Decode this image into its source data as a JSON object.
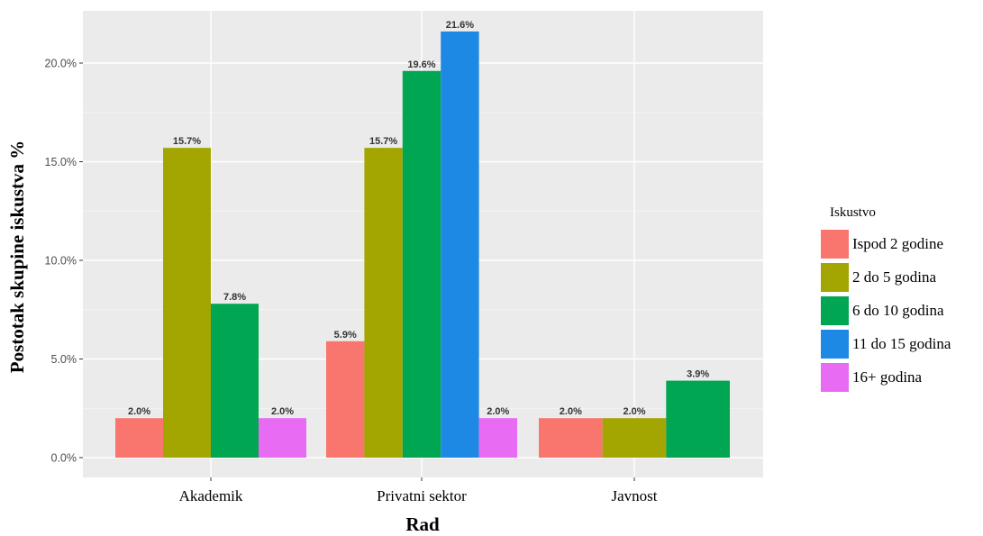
{
  "chart_data": {
    "type": "bar",
    "categories": [
      "Akademik",
      "Privatni sektor",
      "Javnost"
    ],
    "series": [
      {
        "name": "Ispod 2 godine",
        "color": "#F8766D",
        "values": [
          2.0,
          5.9,
          2.0
        ],
        "labels": [
          "2.0%",
          "5.9%",
          "2.0%"
        ]
      },
      {
        "name": "2 do 5 godina",
        "color": "#A3A500",
        "values": [
          15.7,
          15.7,
          2.0
        ],
        "labels": [
          "15.7%",
          "15.7%",
          "2.0%"
        ]
      },
      {
        "name": "6 do 10 godina",
        "color": "#00A651",
        "values": [
          7.8,
          19.6,
          3.9
        ],
        "labels": [
          "7.8%",
          "19.6%",
          "3.9%"
        ]
      },
      {
        "name": "11 do 15 godina",
        "color": "#1E88E5",
        "values": [
          null,
          21.6,
          null
        ],
        "labels": [
          "",
          "21.6%",
          ""
        ]
      },
      {
        "name": "16+ godina",
        "color": "#E76BF3",
        "values": [
          2.0,
          2.0,
          null
        ],
        "labels": [
          "2.0%",
          "2.0%",
          ""
        ]
      }
    ],
    "xlabel": "Rad",
    "ylabel": "Postotak skupine iskustva %",
    "ylim": [
      0,
      22.5
    ],
    "yticks": [
      0,
      5,
      10,
      15,
      20
    ],
    "ytick_labels": [
      "0.0%",
      "5.0%",
      "10.0%",
      "15.0%",
      "20.0%"
    ],
    "legend_title": "Iskustvo",
    "legend_position": "right",
    "grid": true,
    "panel_background": "#EBEBEB"
  }
}
